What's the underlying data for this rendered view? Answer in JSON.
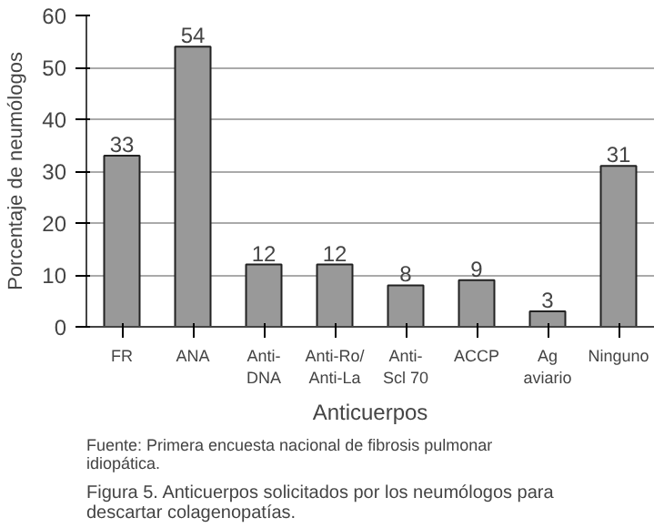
{
  "chart_data": {
    "type": "bar",
    "xlabel": "Anticuerpos",
    "ylabel": "Porcentaje de neumólogos",
    "categories": [
      "FR",
      "ANA",
      "Anti-\nDNA",
      "Anti-Ro/\nAnti-La",
      "Anti-\nScl 70",
      "ACCP",
      "Ag\naviario",
      "Ninguno"
    ],
    "values": [
      33,
      54,
      12,
      12,
      8,
      9,
      3,
      31
    ],
    "color": "#999999",
    "ylim": [
      0,
      60
    ],
    "yticks": [
      0,
      10,
      20,
      30,
      40,
      50,
      60
    ],
    "grid": "y",
    "data_labels": true,
    "annotations": [
      "Fuente: Primera encuesta nacional de fibrosis pulmonar idiopática.",
      "Figura 5. Anticuerpos solicitados por los neumólogos para descartar colagenopatías."
    ]
  }
}
